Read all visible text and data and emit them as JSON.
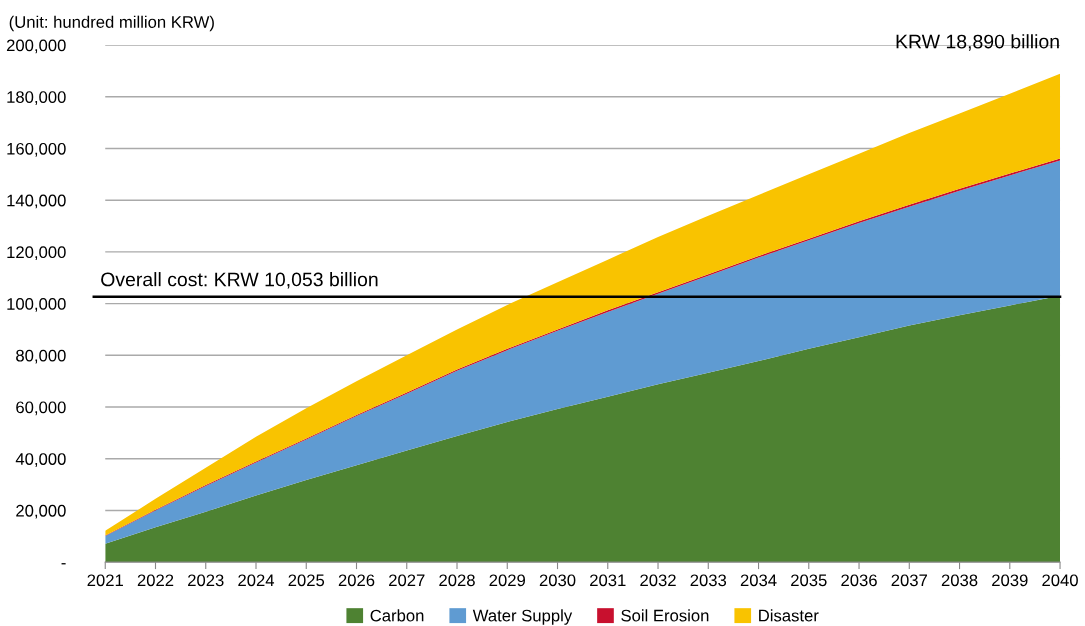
{
  "chart_data": {
    "type": "area",
    "stacked": true,
    "ylabel": "(Unit: hundred million KRW)",
    "x": [
      2021,
      2022,
      2023,
      2024,
      2025,
      2026,
      2027,
      2028,
      2029,
      2030,
      2031,
      2032,
      2033,
      2034,
      2035,
      2036,
      2037,
      2038,
      2039,
      2040
    ],
    "series": [
      {
        "name": "Carbon",
        "color": "#4e8232",
        "values": [
          7100,
          13500,
          19500,
          25800,
          31800,
          37500,
          43200,
          48800,
          54200,
          59200,
          64000,
          68800,
          73300,
          77800,
          82500,
          87000,
          91500,
          95500,
          99300,
          103000
        ]
      },
      {
        "name": "Water Supply",
        "color": "#5f9bd2",
        "values": [
          3000,
          6500,
          10000,
          12700,
          15600,
          19000,
          21900,
          25200,
          27800,
          30300,
          32800,
          35000,
          37500,
          40000,
          42000,
          44200,
          46000,
          48200,
          50300,
          52400
        ]
      },
      {
        "name": "Soil Erosion",
        "color": "#c8102e",
        "values": [
          200,
          300,
          300,
          400,
          400,
          400,
          500,
          500,
          500,
          500,
          600,
          600,
          600,
          600,
          600,
          700,
          700,
          700,
          700,
          700
        ]
      },
      {
        "name": "Disaster",
        "color": "#f9c300",
        "values": [
          1800,
          4200,
          6700,
          9600,
          11700,
          13100,
          14400,
          15500,
          17000,
          18300,
          19600,
          21400,
          22600,
          23600,
          24900,
          26100,
          27800,
          29100,
          30900,
          32800
        ]
      }
    ],
    "xlim": [
      2021,
      2040
    ],
    "xticks": [
      2021,
      2022,
      2023,
      2024,
      2025,
      2026,
      2027,
      2028,
      2029,
      2030,
      2031,
      2032,
      2033,
      2034,
      2035,
      2036,
      2037,
      2038,
      2039,
      2040
    ],
    "ylim": [
      0,
      200000
    ],
    "yticks": [
      {
        "value": 0,
        "label": "-"
      },
      {
        "value": 20000,
        "label": "20,000"
      },
      {
        "value": 40000,
        "label": "40,000"
      },
      {
        "value": 60000,
        "label": "60,000"
      },
      {
        "value": 80000,
        "label": "80,000"
      },
      {
        "value": 100000,
        "label": "100,000"
      },
      {
        "value": 120000,
        "label": "120,000"
      },
      {
        "value": 140000,
        "label": "140,000"
      },
      {
        "value": 160000,
        "label": "160,000"
      },
      {
        "value": 180000,
        "label": "180,000"
      },
      {
        "value": 200000,
        "label": "200,000"
      }
    ],
    "ref_lines": [
      {
        "axis": "y",
        "value": 102700,
        "label": "Overall cost: KRW 10,053 billion",
        "color": "#000000"
      }
    ],
    "annotations": [
      {
        "text": "KRW 18,890 billion",
        "x": 2040,
        "y": 188900
      }
    ],
    "grid": "y",
    "legend": "bottom"
  }
}
